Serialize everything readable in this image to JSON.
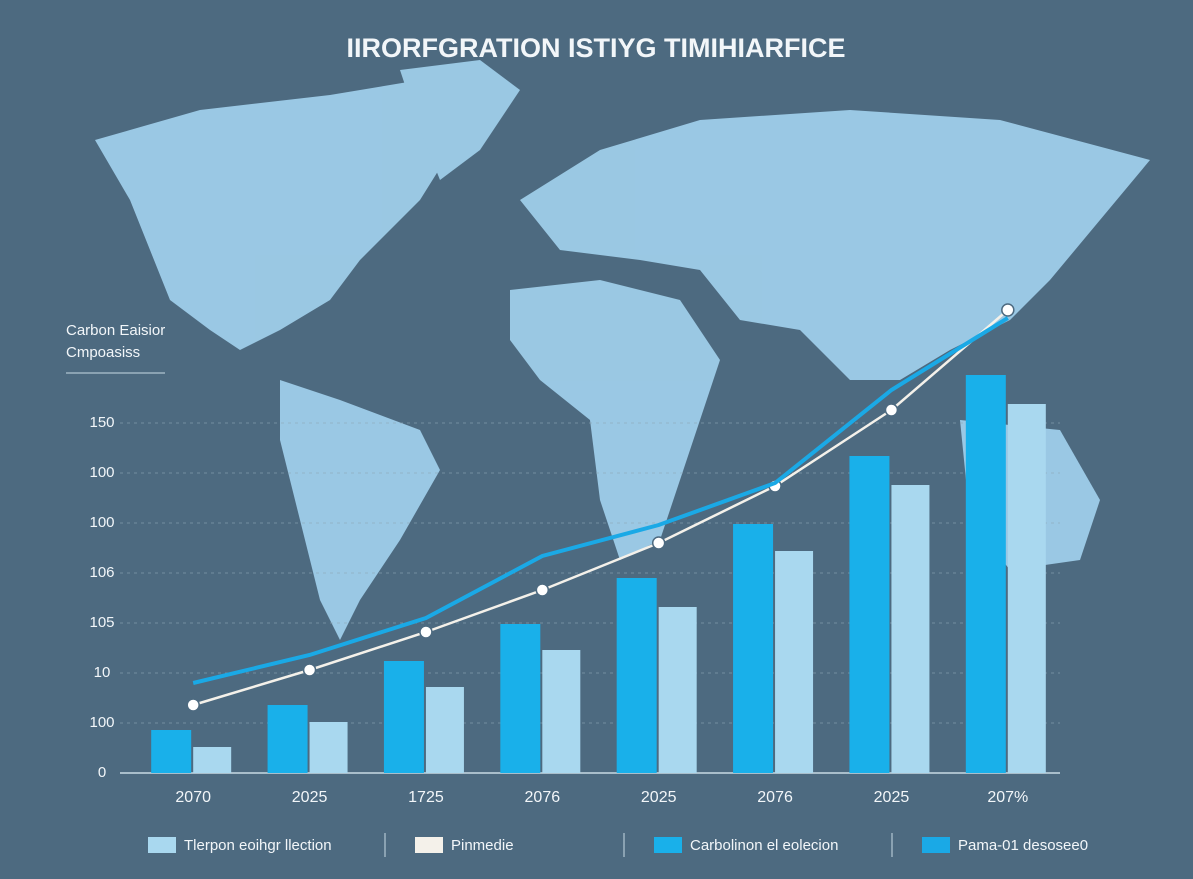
{
  "chart_data": {
    "type": "bar",
    "title": "IIRORFGRATION ISTIYG TIMIHIARFICE",
    "y_label": [
      "Carbon Eaisior",
      "Cmpoasiss"
    ],
    "categories": [
      "2070",
      "2025",
      "1725",
      "2076",
      "2025",
      "2076",
      "2025",
      "207%"
    ],
    "series": [
      {
        "name": "Tlerpon eoihgr llection",
        "type": "bar",
        "color": "#a9d8ef",
        "values": [
          13,
          25.5,
          43,
          61.5,
          83,
          111,
          144,
          184.5
        ]
      },
      {
        "name": "Pinmedie",
        "type": "line",
        "color": "#f4f1ea",
        "markers": true,
        "values": [
          34,
          51.5,
          70.5,
          91.5,
          115,
          143.5,
          181.5,
          231.5
        ]
      },
      {
        "name": "Carbolinon el eolecion",
        "type": "bar",
        "color": "#19b0ea",
        "values": [
          21.5,
          34,
          56,
          74.5,
          97.5,
          124.5,
          158.5,
          199
        ]
      },
      {
        "name": "Pama-01 desosee0",
        "type": "line",
        "color": "#1aa9e6",
        "markers": false,
        "values": [
          45,
          59,
          77.5,
          108.5,
          124,
          145,
          191.5,
          227.5
        ]
      }
    ],
    "ylim": [
      0,
      235
    ],
    "yticks": [
      0,
      {
        "value": 25,
        "label": "100"
      },
      {
        "value": 50,
        "label": "10"
      },
      {
        "value": 75,
        "label": "105"
      },
      {
        "value": 100,
        "label": "106"
      },
      {
        "value": 125,
        "label": "100"
      },
      {
        "value": 150,
        "label": "100"
      },
      {
        "value": 175,
        "label": "150"
      }
    ],
    "grid": true
  }
}
